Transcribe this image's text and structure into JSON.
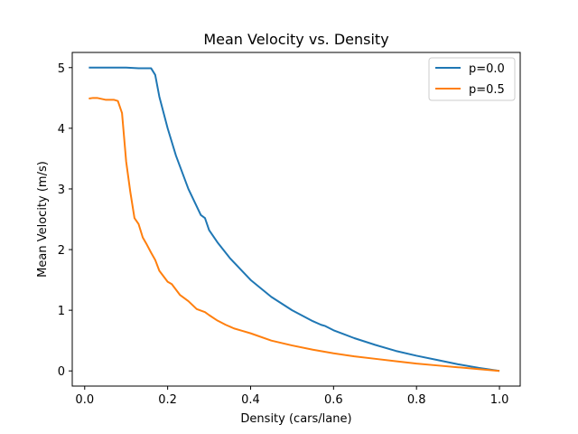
{
  "chart_data": {
    "type": "line",
    "title": "Mean Velocity vs. Density",
    "xlabel": "Density (cars/lane)",
    "ylabel": "Mean Velocity (m/s)",
    "xlim": [
      -0.03,
      1.05
    ],
    "ylim": [
      -0.25,
      5.25
    ],
    "x_ticks": [
      0.0,
      0.2,
      0.4,
      0.6,
      0.8,
      1.0
    ],
    "x_tick_labels": [
      "0.0",
      "0.2",
      "0.4",
      "0.6",
      "0.8",
      "1.0"
    ],
    "y_ticks": [
      0,
      1,
      2,
      3,
      4,
      5
    ],
    "y_tick_labels": [
      "0",
      "1",
      "2",
      "3",
      "4",
      "5"
    ],
    "grid": false,
    "legend_position": "top-right",
    "series": [
      {
        "name": "p=0.0",
        "color": "#1f77b4",
        "x": [
          0.01,
          0.05,
          0.1,
          0.13,
          0.16,
          0.17,
          0.18,
          0.2,
          0.22,
          0.25,
          0.28,
          0.29,
          0.3,
          0.32,
          0.35,
          0.4,
          0.45,
          0.5,
          0.55,
          0.57,
          0.58,
          0.6,
          0.65,
          0.7,
          0.75,
          0.8,
          0.85,
          0.9,
          0.95,
          1.0
        ],
        "y": [
          5.0,
          5.0,
          5.0,
          4.99,
          4.99,
          4.88,
          4.52,
          4.0,
          3.55,
          3.0,
          2.57,
          2.52,
          2.32,
          2.12,
          1.86,
          1.5,
          1.22,
          1.0,
          0.82,
          0.76,
          0.74,
          0.67,
          0.54,
          0.43,
          0.33,
          0.25,
          0.18,
          0.11,
          0.05,
          0.0
        ]
      },
      {
        "name": "p=0.5",
        "color": "#ff7f0e",
        "x": [
          0.01,
          0.02,
          0.03,
          0.05,
          0.07,
          0.08,
          0.09,
          0.1,
          0.11,
          0.12,
          0.13,
          0.14,
          0.15,
          0.16,
          0.17,
          0.18,
          0.2,
          0.21,
          0.23,
          0.25,
          0.27,
          0.29,
          0.3,
          0.32,
          0.34,
          0.36,
          0.38,
          0.4,
          0.45,
          0.5,
          0.55,
          0.6,
          0.65,
          0.7,
          0.75,
          0.8,
          0.85,
          0.9,
          0.95,
          1.0
        ],
        "y": [
          4.49,
          4.5,
          4.5,
          4.47,
          4.47,
          4.45,
          4.25,
          3.45,
          2.95,
          2.52,
          2.42,
          2.2,
          2.08,
          1.95,
          1.83,
          1.65,
          1.47,
          1.43,
          1.25,
          1.15,
          1.02,
          0.97,
          0.92,
          0.83,
          0.76,
          0.7,
          0.66,
          0.62,
          0.5,
          0.42,
          0.35,
          0.29,
          0.24,
          0.2,
          0.16,
          0.12,
          0.09,
          0.06,
          0.03,
          0.0
        ]
      }
    ]
  }
}
